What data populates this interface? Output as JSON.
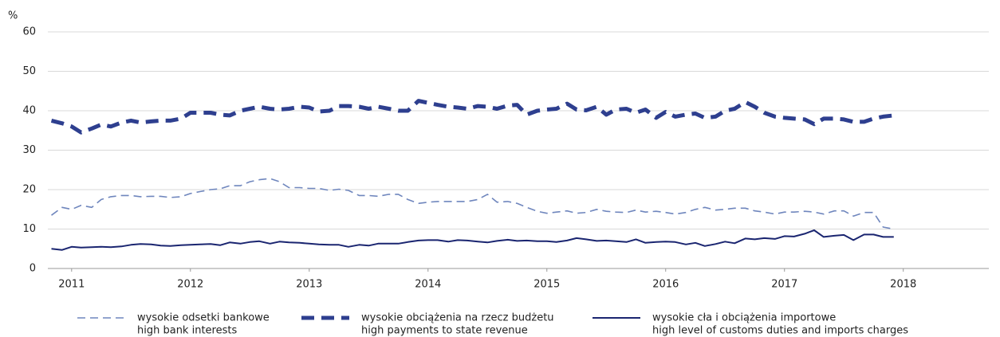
{
  "chart_data": {
    "type": "line",
    "y_label": "%",
    "x": [
      2010.83,
      2010.92,
      2011.0,
      2011.08,
      2011.17,
      2011.25,
      2011.33,
      2011.42,
      2011.5,
      2011.58,
      2011.67,
      2011.75,
      2011.83,
      2011.92,
      2012.0,
      2012.08,
      2012.17,
      2012.25,
      2012.33,
      2012.42,
      2012.5,
      2012.58,
      2012.67,
      2012.75,
      2012.83,
      2012.92,
      2013.0,
      2013.08,
      2013.17,
      2013.25,
      2013.33,
      2013.42,
      2013.5,
      2013.58,
      2013.67,
      2013.75,
      2013.83,
      2013.92,
      2014.0,
      2014.08,
      2014.17,
      2014.25,
      2014.33,
      2014.42,
      2014.5,
      2014.58,
      2014.67,
      2014.75,
      2014.83,
      2014.92,
      2015.0,
      2015.08,
      2015.17,
      2015.25,
      2015.33,
      2015.42,
      2015.5,
      2015.58,
      2015.67,
      2015.75,
      2015.83,
      2015.92,
      2016.0,
      2016.08,
      2016.17,
      2016.25,
      2016.33,
      2016.42,
      2016.5,
      2016.58,
      2016.67,
      2016.75,
      2016.83,
      2016.92,
      2017.0,
      2017.08,
      2017.17,
      2017.25,
      2017.33,
      2017.42,
      2017.5,
      2017.58,
      2017.67,
      2017.75,
      2017.83,
      2017.92
    ],
    "series": [
      {
        "name": "wysokie odsetki bankowe",
        "name_en": "high bank interests",
        "color": "#6f86bd",
        "style": "dashed",
        "values": [
          13.5,
          15.5,
          15,
          16,
          15.5,
          17.5,
          18.2,
          18.5,
          18.5,
          18.2,
          18.3,
          18.3,
          18,
          18.2,
          19,
          19.5,
          20,
          20.2,
          21,
          21,
          22,
          22.5,
          22.8,
          22,
          20.5,
          20.5,
          20.3,
          20.3,
          19.8,
          20.1,
          19.8,
          18.5,
          18.5,
          18.3,
          18.8,
          18.8,
          17.5,
          16.5,
          16.8,
          17,
          17,
          17,
          17,
          17.5,
          18.8,
          16.8,
          17,
          16.5,
          15.5,
          14.5,
          14,
          14.3,
          14.6,
          14,
          14.2,
          15,
          14.5,
          14.3,
          14.2,
          14.8,
          14.3,
          14.5,
          14.2,
          13.8,
          14.2,
          15,
          15.5,
          14.8,
          15,
          15.3,
          15.3,
          14.6,
          14.3,
          13.8,
          14.3,
          14.3,
          14.5,
          14.3,
          13.8,
          14.6,
          14.6,
          13.3,
          14.2,
          14.2,
          10.5,
          10
        ]
      },
      {
        "name": "wysokie obciążenia na rzecz budżetu",
        "name_en": "high payments to state revenue",
        "color": "#2e3f8f",
        "style": "thick-dashed",
        "values": [
          37.5,
          36.8,
          36,
          34.5,
          35.5,
          36.5,
          36,
          37,
          37.5,
          37,
          37.3,
          37.5,
          37.5,
          38,
          39.5,
          39.5,
          39.5,
          39,
          38.8,
          40,
          40.5,
          41,
          40.5,
          40.3,
          40.5,
          41,
          40.8,
          39.8,
          40,
          41.2,
          41.2,
          41,
          40.5,
          41,
          40.5,
          40,
          40,
          42.5,
          42,
          41.5,
          41,
          40.8,
          40.5,
          41.2,
          41,
          40.5,
          41.3,
          41.5,
          39,
          40,
          40.3,
          40.5,
          41.8,
          40.3,
          40.1,
          41,
          39,
          40.3,
          40.5,
          39.5,
          40.3,
          38.2,
          39.7,
          38.5,
          39,
          39.3,
          38.2,
          38.5,
          40,
          40.5,
          42.2,
          41,
          39.5,
          38.5,
          38.2,
          38,
          37.8,
          36.6,
          38,
          38,
          37.8,
          37.2,
          37.2,
          38,
          38.5,
          38.8
        ]
      },
      {
        "name": "wysokie cła i obciążenia importowe",
        "name_en": "high level of customs duties and imports charges",
        "color": "#1a2570",
        "style": "solid",
        "values": [
          5,
          4.7,
          5.5,
          5.3,
          5.4,
          5.5,
          5.4,
          5.6,
          6,
          6.2,
          6.1,
          5.8,
          5.7,
          5.9,
          6,
          6.1,
          6.2,
          5.9,
          6.6,
          6.3,
          6.7,
          6.9,
          6.3,
          6.8,
          6.6,
          6.5,
          6.3,
          6.1,
          6,
          6,
          5.5,
          6,
          5.8,
          6.3,
          6.3,
          6.3,
          6.7,
          7.1,
          7.2,
          7.2,
          6.8,
          7.2,
          7.1,
          6.8,
          6.6,
          7,
          7.3,
          7,
          7.1,
          6.9,
          6.9,
          6.7,
          7.1,
          7.7,
          7.4,
          7,
          7.1,
          6.9,
          6.7,
          7.4,
          6.5,
          6.7,
          6.8,
          6.7,
          6.1,
          6.5,
          5.7,
          6.2,
          6.8,
          6.4,
          7.6,
          7.4,
          7.7,
          7.5,
          8.2,
          8.1,
          8.8,
          9.7,
          8,
          8.3,
          8.5,
          7.2,
          8.6,
          8.6,
          8,
          8
        ]
      }
    ],
    "xlim": [
      2010.8,
      2018.72
    ],
    "xticks": [
      2011,
      2012,
      2013,
      2014,
      2015,
      2016,
      2017,
      2018
    ],
    "ylim": [
      0,
      60
    ],
    "yticks": [
      0,
      10,
      20,
      30,
      40,
      50,
      60
    ],
    "grid": true
  }
}
